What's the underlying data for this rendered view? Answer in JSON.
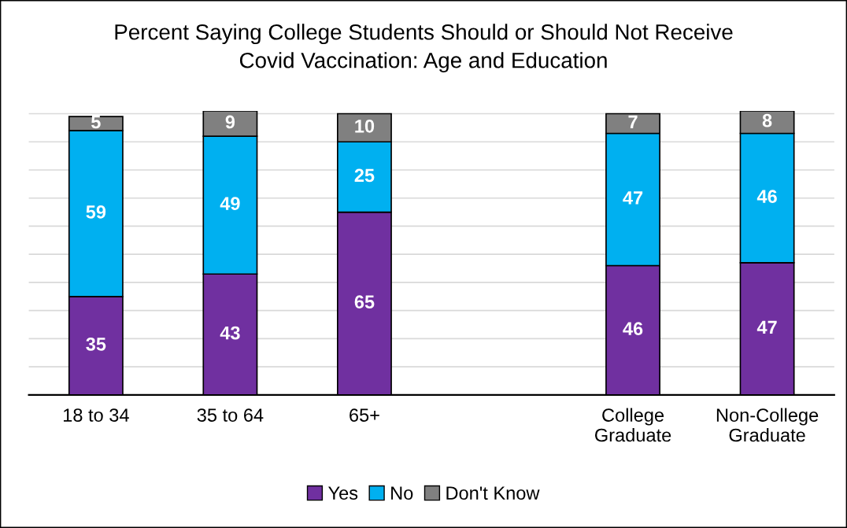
{
  "chart_data": {
    "type": "bar",
    "title": "Percent Saying College Students Should or Should Not Receive\nCovid Vaccination: Age and Education",
    "categories": [
      "18 to 34",
      "35 to 64",
      "65+",
      null,
      "College\nGraduate",
      "Non-College\nGraduate"
    ],
    "stacked": true,
    "series": [
      {
        "name": "Yes",
        "color": "#7030a0",
        "values": [
          35,
          43,
          65,
          null,
          46,
          47
        ]
      },
      {
        "name": "No",
        "color": "#00b0f0",
        "values": [
          59,
          49,
          25,
          null,
          47,
          46
        ]
      },
      {
        "name": "Don't Know",
        "color": "#808080",
        "values": [
          5,
          9,
          10,
          null,
          7,
          8
        ]
      }
    ],
    "ylim": [
      0,
      101
    ],
    "yticks": [
      {
        "value": 0,
        "label": null
      },
      {
        "value": 10,
        "label": null
      },
      {
        "value": 20,
        "label": null
      },
      {
        "value": 30,
        "label": null
      },
      {
        "value": 40,
        "label": null
      },
      {
        "value": 50,
        "label": null
      },
      {
        "value": 60,
        "label": null
      },
      {
        "value": 70,
        "label": null
      },
      {
        "value": 80,
        "label": null
      },
      {
        "value": 90,
        "label": null
      },
      {
        "value": 100,
        "label": null
      }
    ],
    "grid": "y",
    "tick_labels": "x",
    "data_labels": true,
    "legend": "bottom"
  }
}
